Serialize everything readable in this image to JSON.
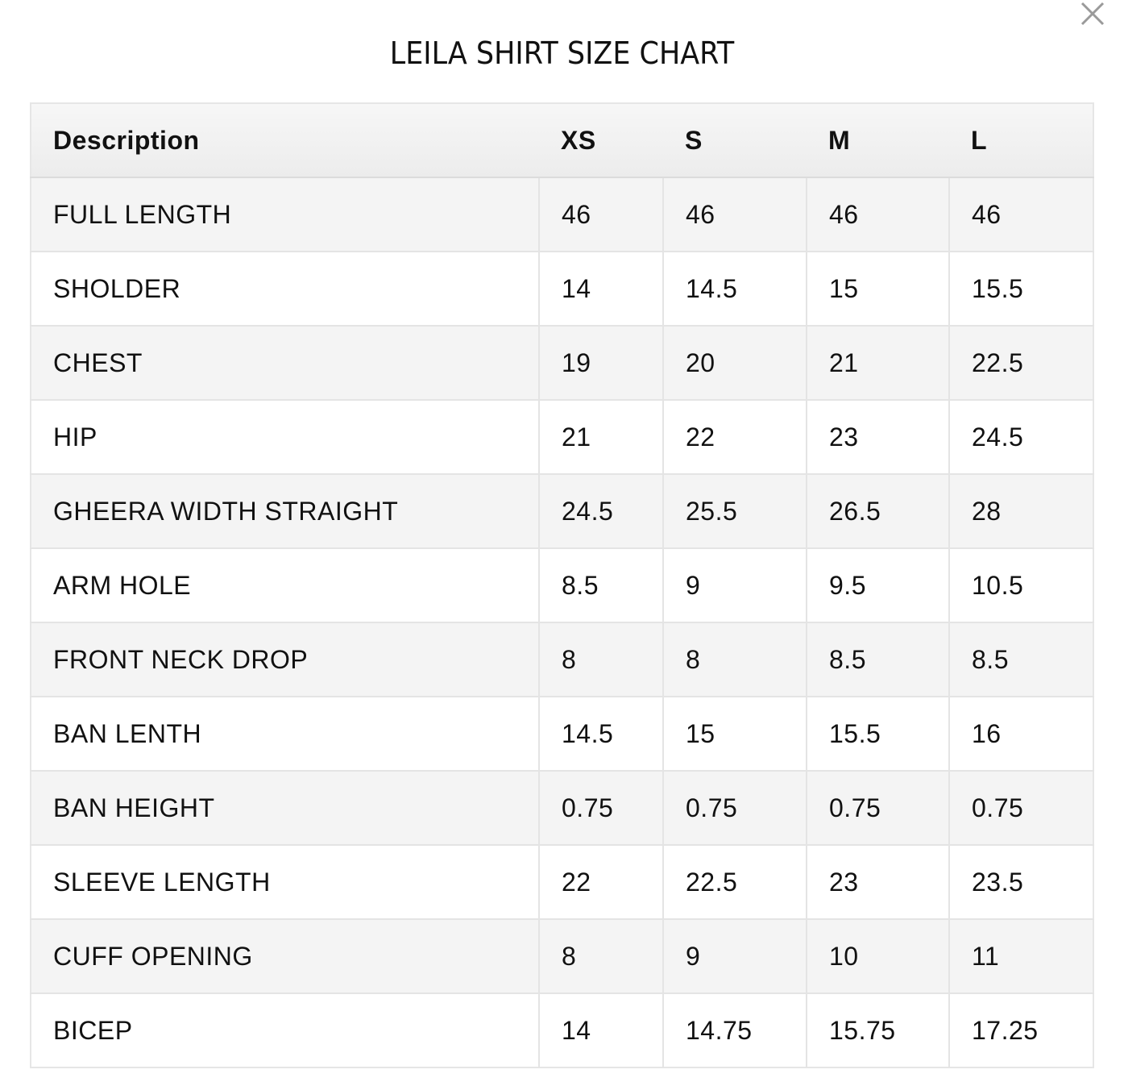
{
  "title": "LEILA SHIRT SIZE CHART",
  "close_icon": "close-icon",
  "table": {
    "headers": [
      "Description",
      "XS",
      "S",
      "M",
      "L"
    ],
    "rows": [
      [
        "FULL LENGTH",
        "46",
        "46",
        "46",
        "46"
      ],
      [
        "SHOLDER",
        "14",
        "14.5",
        "15",
        "15.5"
      ],
      [
        "CHEST",
        "19",
        "20",
        "21",
        "22.5"
      ],
      [
        "HIP",
        "21",
        "22",
        "23",
        "24.5"
      ],
      [
        "GHEERA WIDTH STRAIGHT",
        "24.5",
        "25.5",
        "26.5",
        "28"
      ],
      [
        "ARM HOLE",
        "8.5",
        "9",
        "9.5",
        "10.5"
      ],
      [
        "FRONT NECK DROP",
        "8",
        "8",
        "8.5",
        "8.5"
      ],
      [
        "BAN LENTH",
        "14.5",
        "15",
        "15.5",
        "16"
      ],
      [
        "BAN HEIGHT",
        "0.75",
        "0.75",
        "0.75",
        "0.75"
      ],
      [
        "SLEEVE LENGTH",
        "22",
        "22.5",
        "23",
        "23.5"
      ],
      [
        "CUFF OPENING",
        "8",
        "9",
        "10",
        "11"
      ],
      [
        "BICEP",
        "14",
        "14.75",
        "15.75",
        "17.25"
      ]
    ]
  }
}
